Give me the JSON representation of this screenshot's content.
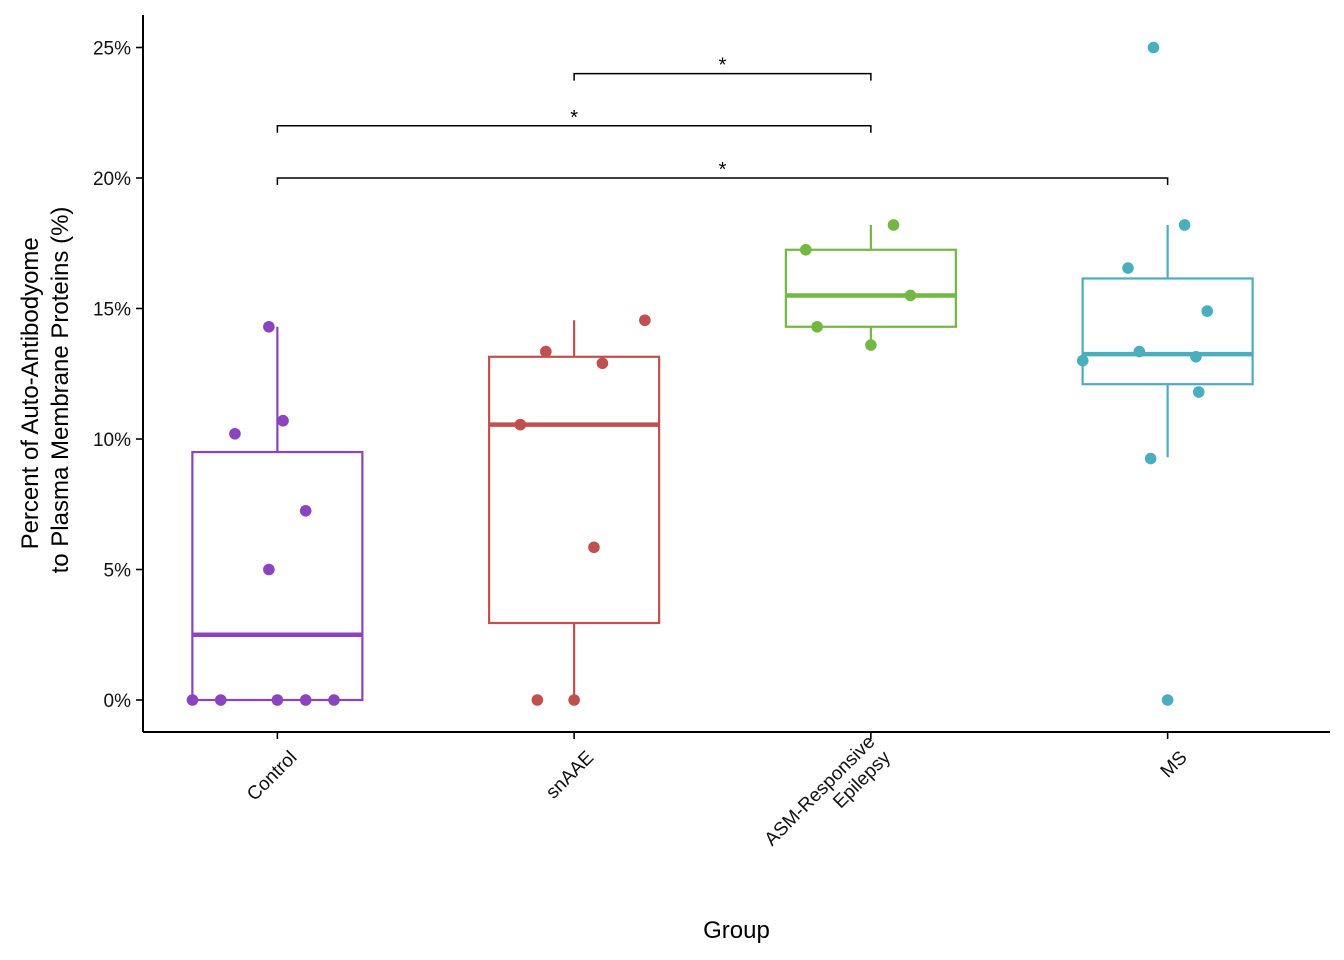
{
  "chart_data": {
    "type": "box",
    "xlabel": "Group",
    "ylabel_lines": [
      "Percent of Auto-Antibodyome",
      "to Plasma Membrane Proteins (%)"
    ],
    "ylim": [
      -1.2,
      26.2
    ],
    "yticks": [
      0,
      5,
      10,
      15,
      20,
      25
    ],
    "ytick_labels": [
      "0%",
      "5%",
      "10%",
      "15%",
      "20%",
      "25%"
    ],
    "grid": false,
    "groups": [
      {
        "label_lines": [
          "Control"
        ],
        "color": "#8B44BE",
        "box": {
          "whisker_low": 0,
          "q1": 0,
          "median": 2.5,
          "q3": 9.5,
          "whisker_high": 14.3
        },
        "points": [
          {
            "x": -0.3,
            "y": 0
          },
          {
            "x": -0.2,
            "y": 0
          },
          {
            "x": 0.0,
            "y": 0
          },
          {
            "x": 0.1,
            "y": 0
          },
          {
            "x": 0.2,
            "y": 0
          },
          {
            "x": -0.03,
            "y": 5.0
          },
          {
            "x": 0.1,
            "y": 7.25
          },
          {
            "x": -0.15,
            "y": 10.2
          },
          {
            "x": 0.02,
            "y": 10.7
          },
          {
            "x": -0.03,
            "y": 14.3
          }
        ]
      },
      {
        "label_lines": [
          "snAAE"
        ],
        "color": "#C0504D",
        "box": {
          "whisker_low": 0,
          "q1": 2.95,
          "median": 10.55,
          "q3": 13.15,
          "whisker_high": 14.55
        },
        "points": [
          {
            "x": -0.13,
            "y": 0
          },
          {
            "x": 0.0,
            "y": 0
          },
          {
            "x": 0.07,
            "y": 5.85
          },
          {
            "x": -0.19,
            "y": 10.55
          },
          {
            "x": 0.1,
            "y": 12.9
          },
          {
            "x": -0.1,
            "y": 13.35
          },
          {
            "x": 0.25,
            "y": 14.55
          }
        ]
      },
      {
        "label_lines": [
          "ASM-Responsive",
          "Epilepsy"
        ],
        "color": "#72B843",
        "box": {
          "whisker_low": 13.6,
          "q1": 14.3,
          "median": 15.5,
          "q3": 17.25,
          "whisker_high": 18.2
        },
        "points": [
          {
            "x": 0.0,
            "y": 13.6
          },
          {
            "x": -0.19,
            "y": 14.3
          },
          {
            "x": 0.14,
            "y": 15.5
          },
          {
            "x": -0.23,
            "y": 17.25
          },
          {
            "x": 0.08,
            "y": 18.2
          }
        ]
      },
      {
        "label_lines": [
          "MS"
        ],
        "color": "#4BAEBE",
        "box": {
          "whisker_low": 9.3,
          "q1": 12.1,
          "median": 13.25,
          "q3": 16.15,
          "whisker_high": 18.2
        },
        "points": [
          {
            "x": 0.0,
            "y": 0
          },
          {
            "x": -0.06,
            "y": 9.25
          },
          {
            "x": 0.11,
            "y": 11.8
          },
          {
            "x": -0.3,
            "y": 13.0
          },
          {
            "x": 0.1,
            "y": 13.15
          },
          {
            "x": -0.1,
            "y": 13.35
          },
          {
            "x": 0.14,
            "y": 14.9
          },
          {
            "x": -0.14,
            "y": 16.55
          },
          {
            "x": 0.06,
            "y": 18.2
          },
          {
            "x": -0.05,
            "y": 25.0
          }
        ]
      }
    ],
    "significance": [
      {
        "from": 1,
        "to": 2,
        "y": 24.0,
        "label": "*"
      },
      {
        "from": 0,
        "to": 2,
        "y": 22.0,
        "label": "*"
      },
      {
        "from": 0,
        "to": 3,
        "y": 20.0,
        "label": "*"
      }
    ]
  }
}
